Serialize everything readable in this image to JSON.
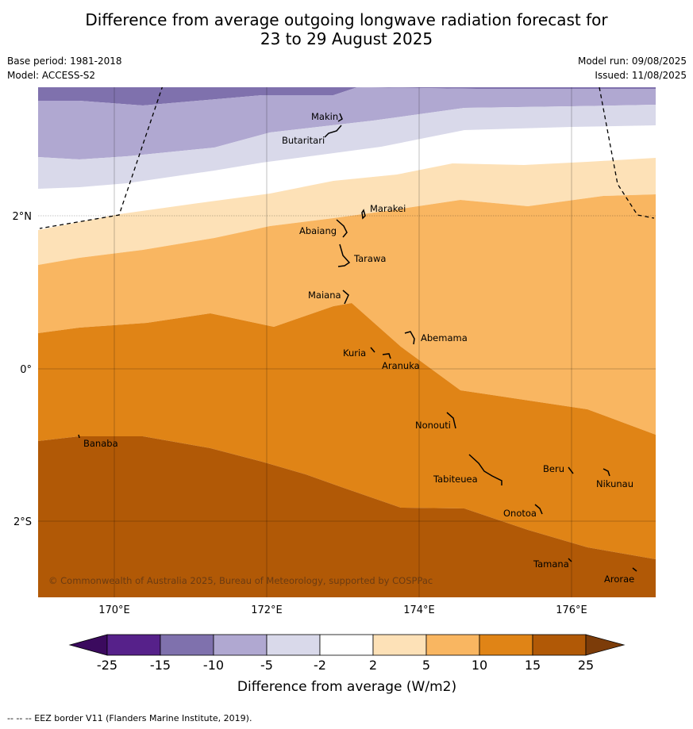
{
  "title": {
    "line1": "Difference from average outgoing longwave radiation forecast for",
    "line2": "23 to 29 August 2025"
  },
  "meta": {
    "base_period": "Base period: 1981-2018",
    "model": "Model: ACCESS-S2",
    "model_run": "Model run: 09/08/2025",
    "issued": "Issued: 11/08/2025"
  },
  "axes": {
    "lat_labels": [
      "2°N",
      "0°",
      "2°S"
    ],
    "lon_labels": [
      "170°E",
      "172°E",
      "174°E",
      "176°E"
    ]
  },
  "places": [
    {
      "name": "Makin"
    },
    {
      "name": "Butaritari"
    },
    {
      "name": "Marakei"
    },
    {
      "name": "Abaiang"
    },
    {
      "name": "Tarawa"
    },
    {
      "name": "Maiana"
    },
    {
      "name": "Abemama"
    },
    {
      "name": "Kuria"
    },
    {
      "name": "Aranuka"
    },
    {
      "name": "Nonouti"
    },
    {
      "name": "Banaba"
    },
    {
      "name": "Beru"
    },
    {
      "name": "Nikunau"
    },
    {
      "name": "Tabiteuea"
    },
    {
      "name": "Onotoa"
    },
    {
      "name": "Tamana"
    },
    {
      "name": "Arorae"
    }
  ],
  "copyright": "© Commonwealth of Australia 2025, Bureau of Meteorology, supported by COSPPac",
  "colorbar": {
    "title": "Difference from average (W/m2)",
    "ticks": [
      "-25",
      "-15",
      "-10",
      "-5",
      "-2",
      "2",
      "5",
      "10",
      "15",
      "25"
    ],
    "colors": [
      "#56218a",
      "#7f71ad",
      "#b0a8d1",
      "#d9d9ea",
      "#ffffff",
      "#fde1b7",
      "#f9b661",
      "#e08416",
      "#b15906"
    ],
    "low_extend_color": "#3b0a5e",
    "high_extend_color": "#7c3c09"
  },
  "legend_footer": "--  --  -- EEZ border V11 (Flanders Marine Institute, 2019)."
}
